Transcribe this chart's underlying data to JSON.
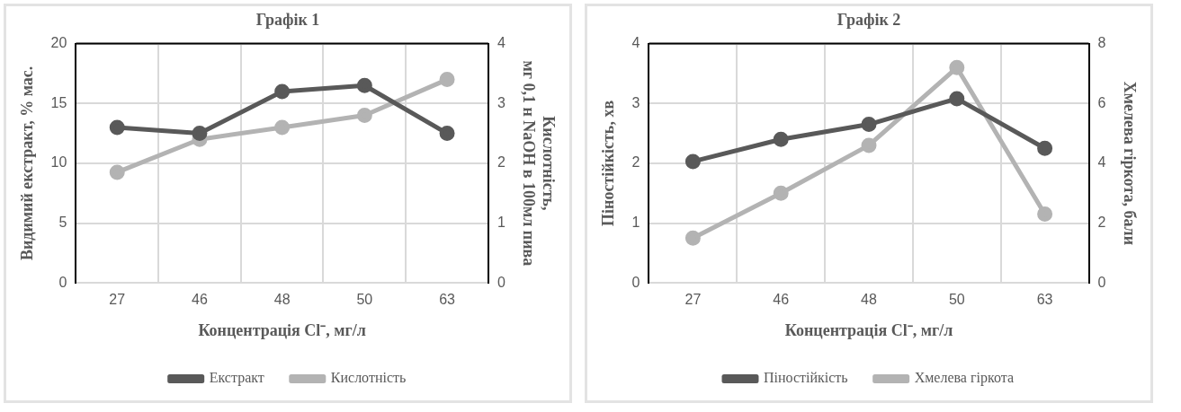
{
  "chart_data": [
    {
      "type": "line",
      "title": "Графік 1",
      "xlabel": "Концентрація Cl⁻, мг/л",
      "ylabel": "Видимий екстракт, % мас.",
      "y2label": "Кислотність,\nмг 0,1 н NaOH в 100мл пива",
      "categories": [
        "27",
        "46",
        "48",
        "50",
        "63"
      ],
      "series": [
        {
          "name": "Екстракт",
          "color": "#595959",
          "values": [
            13,
            12.5,
            16,
            16.5,
            12.5
          ]
        },
        {
          "name": "Кислотність",
          "color": "#b3b3b3",
          "axis": "y2",
          "values": [
            1.85,
            2.4,
            2.6,
            2.8,
            3.4
          ]
        }
      ],
      "ylim": [
        0,
        20
      ],
      "yticks": [
        0,
        5,
        10,
        15,
        20
      ],
      "y2lim": [
        0,
        4
      ],
      "y2ticks": [
        0,
        1,
        2,
        3,
        4
      ],
      "grid": true,
      "legend": "bottom",
      "marker": "circle",
      "line_style": "solid"
    },
    {
      "type": "line",
      "title": "Графік 2",
      "xlabel": "Концентрація Cl⁻, мг/л",
      "ylabel": "Піностійкість, хв",
      "y2label": "Хмелева гіркота, бали",
      "categories": [
        "27",
        "46",
        "48",
        "50",
        "63"
      ],
      "series": [
        {
          "name": "Піностійкість",
          "color": "#595959",
          "values": [
            2.03,
            2.4,
            2.65,
            3.08,
            2.25
          ]
        },
        {
          "name": "Хмелева гіркота",
          "color": "#b3b3b3",
          "axis": "y2",
          "values": [
            1.5,
            3,
            4.6,
            7.2,
            2.3
          ]
        }
      ],
      "ylim": [
        0,
        4
      ],
      "yticks": [
        0,
        1,
        2,
        3,
        4
      ],
      "y2lim": [
        0,
        8
      ],
      "y2ticks": [
        0,
        2,
        4,
        6,
        8
      ],
      "grid": true,
      "legend": "bottom",
      "marker": "circle",
      "line_style": "solid"
    }
  ]
}
